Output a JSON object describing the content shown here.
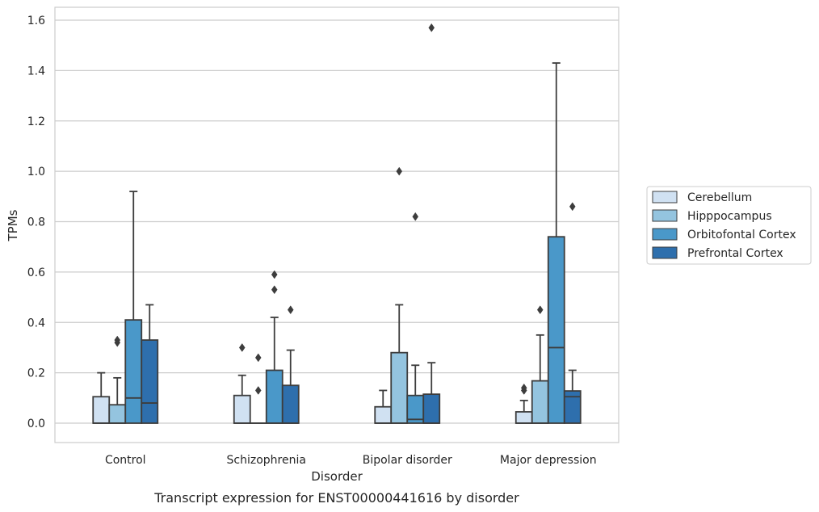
{
  "caption": "Transcript expression for ENST00000441616 by disorder",
  "chart_data": {
    "type": "box",
    "xlabel": "Disorder",
    "ylabel": "TPMs",
    "ylim": [
      -0.075,
      1.65
    ],
    "yticks": [
      0.0,
      0.2,
      0.4,
      0.6,
      0.8,
      1.0,
      1.2,
      1.4,
      1.6
    ],
    "ytick_labels": [
      "0.0",
      "0.2",
      "0.4",
      "0.6",
      "0.8",
      "1.0",
      "1.2",
      "1.4",
      "1.6"
    ],
    "grid": "horizontal",
    "legend_position": "right",
    "categories": [
      "Control",
      "Schizophrenia",
      "Bipolar disorder",
      "Major depression"
    ],
    "series": [
      {
        "name": "Cerebellum",
        "color": "#d0e1f2",
        "boxes": [
          {
            "q1": 0.0,
            "median": 0.0,
            "q3": 0.105,
            "whisker_low": 0.0,
            "whisker_high": 0.2,
            "outliers": []
          },
          {
            "q1": 0.0,
            "median": 0.0,
            "q3": 0.11,
            "whisker_low": 0.0,
            "whisker_high": 0.19,
            "outliers": [
              0.3
            ]
          },
          {
            "q1": 0.0,
            "median": 0.0,
            "q3": 0.065,
            "whisker_low": 0.0,
            "whisker_high": 0.13,
            "outliers": []
          },
          {
            "q1": 0.0,
            "median": 0.0,
            "q3": 0.045,
            "whisker_low": 0.0,
            "whisker_high": 0.09,
            "outliers": [
              0.13,
              0.14
            ]
          }
        ]
      },
      {
        "name": "Hipppocampus",
        "color": "#94c4df",
        "boxes": [
          {
            "q1": 0.0,
            "median": 0.0,
            "q3": 0.073,
            "whisker_low": 0.0,
            "whisker_high": 0.18,
            "outliers": [
              0.32,
              0.33
            ]
          },
          {
            "q1": 0.0,
            "median": 0.0,
            "q3": 0.0,
            "whisker_low": 0.0,
            "whisker_high": 0.0,
            "outliers": [
              0.13,
              0.26
            ]
          },
          {
            "q1": 0.0,
            "median": 0.0,
            "q3": 0.28,
            "whisker_low": 0.0,
            "whisker_high": 0.47,
            "outliers": [
              1.0
            ]
          },
          {
            "q1": 0.0,
            "median": 0.0,
            "q3": 0.168,
            "whisker_low": 0.0,
            "whisker_high": 0.35,
            "outliers": [
              0.45
            ]
          }
        ]
      },
      {
        "name": "Orbitofontal Cortex",
        "color": "#4a98c9",
        "boxes": [
          {
            "q1": 0.0,
            "median": 0.1,
            "q3": 0.41,
            "whisker_low": 0.0,
            "whisker_high": 0.92,
            "outliers": []
          },
          {
            "q1": 0.0,
            "median": 0.0,
            "q3": 0.21,
            "whisker_low": 0.0,
            "whisker_high": 0.42,
            "outliers": [
              0.53,
              0.59
            ]
          },
          {
            "q1": 0.0,
            "median": 0.015,
            "q3": 0.11,
            "whisker_low": 0.0,
            "whisker_high": 0.23,
            "outliers": [
              0.82
            ]
          },
          {
            "q1": 0.0,
            "median": 0.3,
            "q3": 0.74,
            "whisker_low": 0.0,
            "whisker_high": 1.43,
            "outliers": []
          }
        ]
      },
      {
        "name": "Prefrontal Cortex",
        "color": "#2e6fad",
        "boxes": [
          {
            "q1": 0.0,
            "median": 0.08,
            "q3": 0.33,
            "whisker_low": 0.0,
            "whisker_high": 0.47,
            "outliers": []
          },
          {
            "q1": 0.0,
            "median": 0.0,
            "q3": 0.15,
            "whisker_low": 0.0,
            "whisker_high": 0.29,
            "outliers": [
              0.45
            ]
          },
          {
            "q1": 0.0,
            "median": 0.0,
            "q3": 0.115,
            "whisker_low": 0.0,
            "whisker_high": 0.24,
            "outliers": [
              1.57
            ]
          },
          {
            "q1": 0.0,
            "median": 0.105,
            "q3": 0.128,
            "whisker_low": 0.0,
            "whisker_high": 0.21,
            "outliers": [
              0.86
            ]
          }
        ]
      }
    ]
  }
}
